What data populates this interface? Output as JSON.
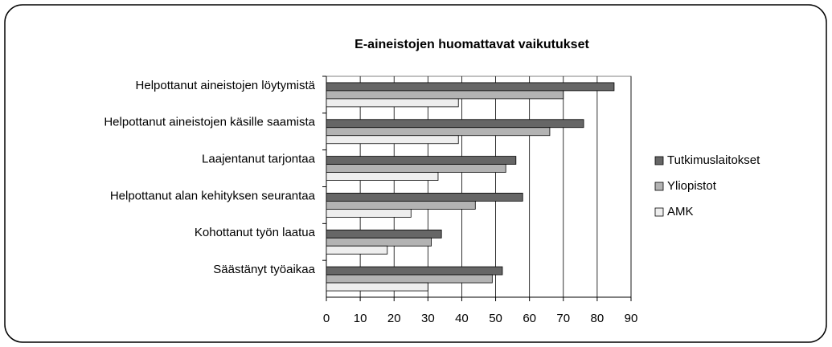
{
  "chart_data": {
    "type": "hbar",
    "title": "E-aineistojen huomattavat vaikutukset",
    "categories": [
      "Helpottanut aineistojen löytymistä",
      "Helpottanut aineistojen käsille saamista",
      "Laajentanut tarjontaa",
      "Helpottanut alan kehityksen seurantaa",
      "Kohottanut työn laatua",
      "Säästänyt työaikaa"
    ],
    "series": [
      {
        "name": "Tutkimuslaitokset",
        "color": "#666666",
        "values": [
          85,
          76,
          56,
          58,
          34,
          52
        ]
      },
      {
        "name": "Yliopistot",
        "color": "#b3b3b3",
        "values": [
          70,
          66,
          53,
          44,
          31,
          49
        ]
      },
      {
        "name": "AMK",
        "color": "#eeeeee",
        "values": [
          39,
          39,
          33,
          25,
          18,
          30
        ]
      }
    ],
    "xlim": [
      0,
      90
    ],
    "xticks": [
      0,
      10,
      20,
      30,
      40,
      50,
      60,
      70,
      80,
      90
    ],
    "grid": true,
    "legend": "right"
  }
}
